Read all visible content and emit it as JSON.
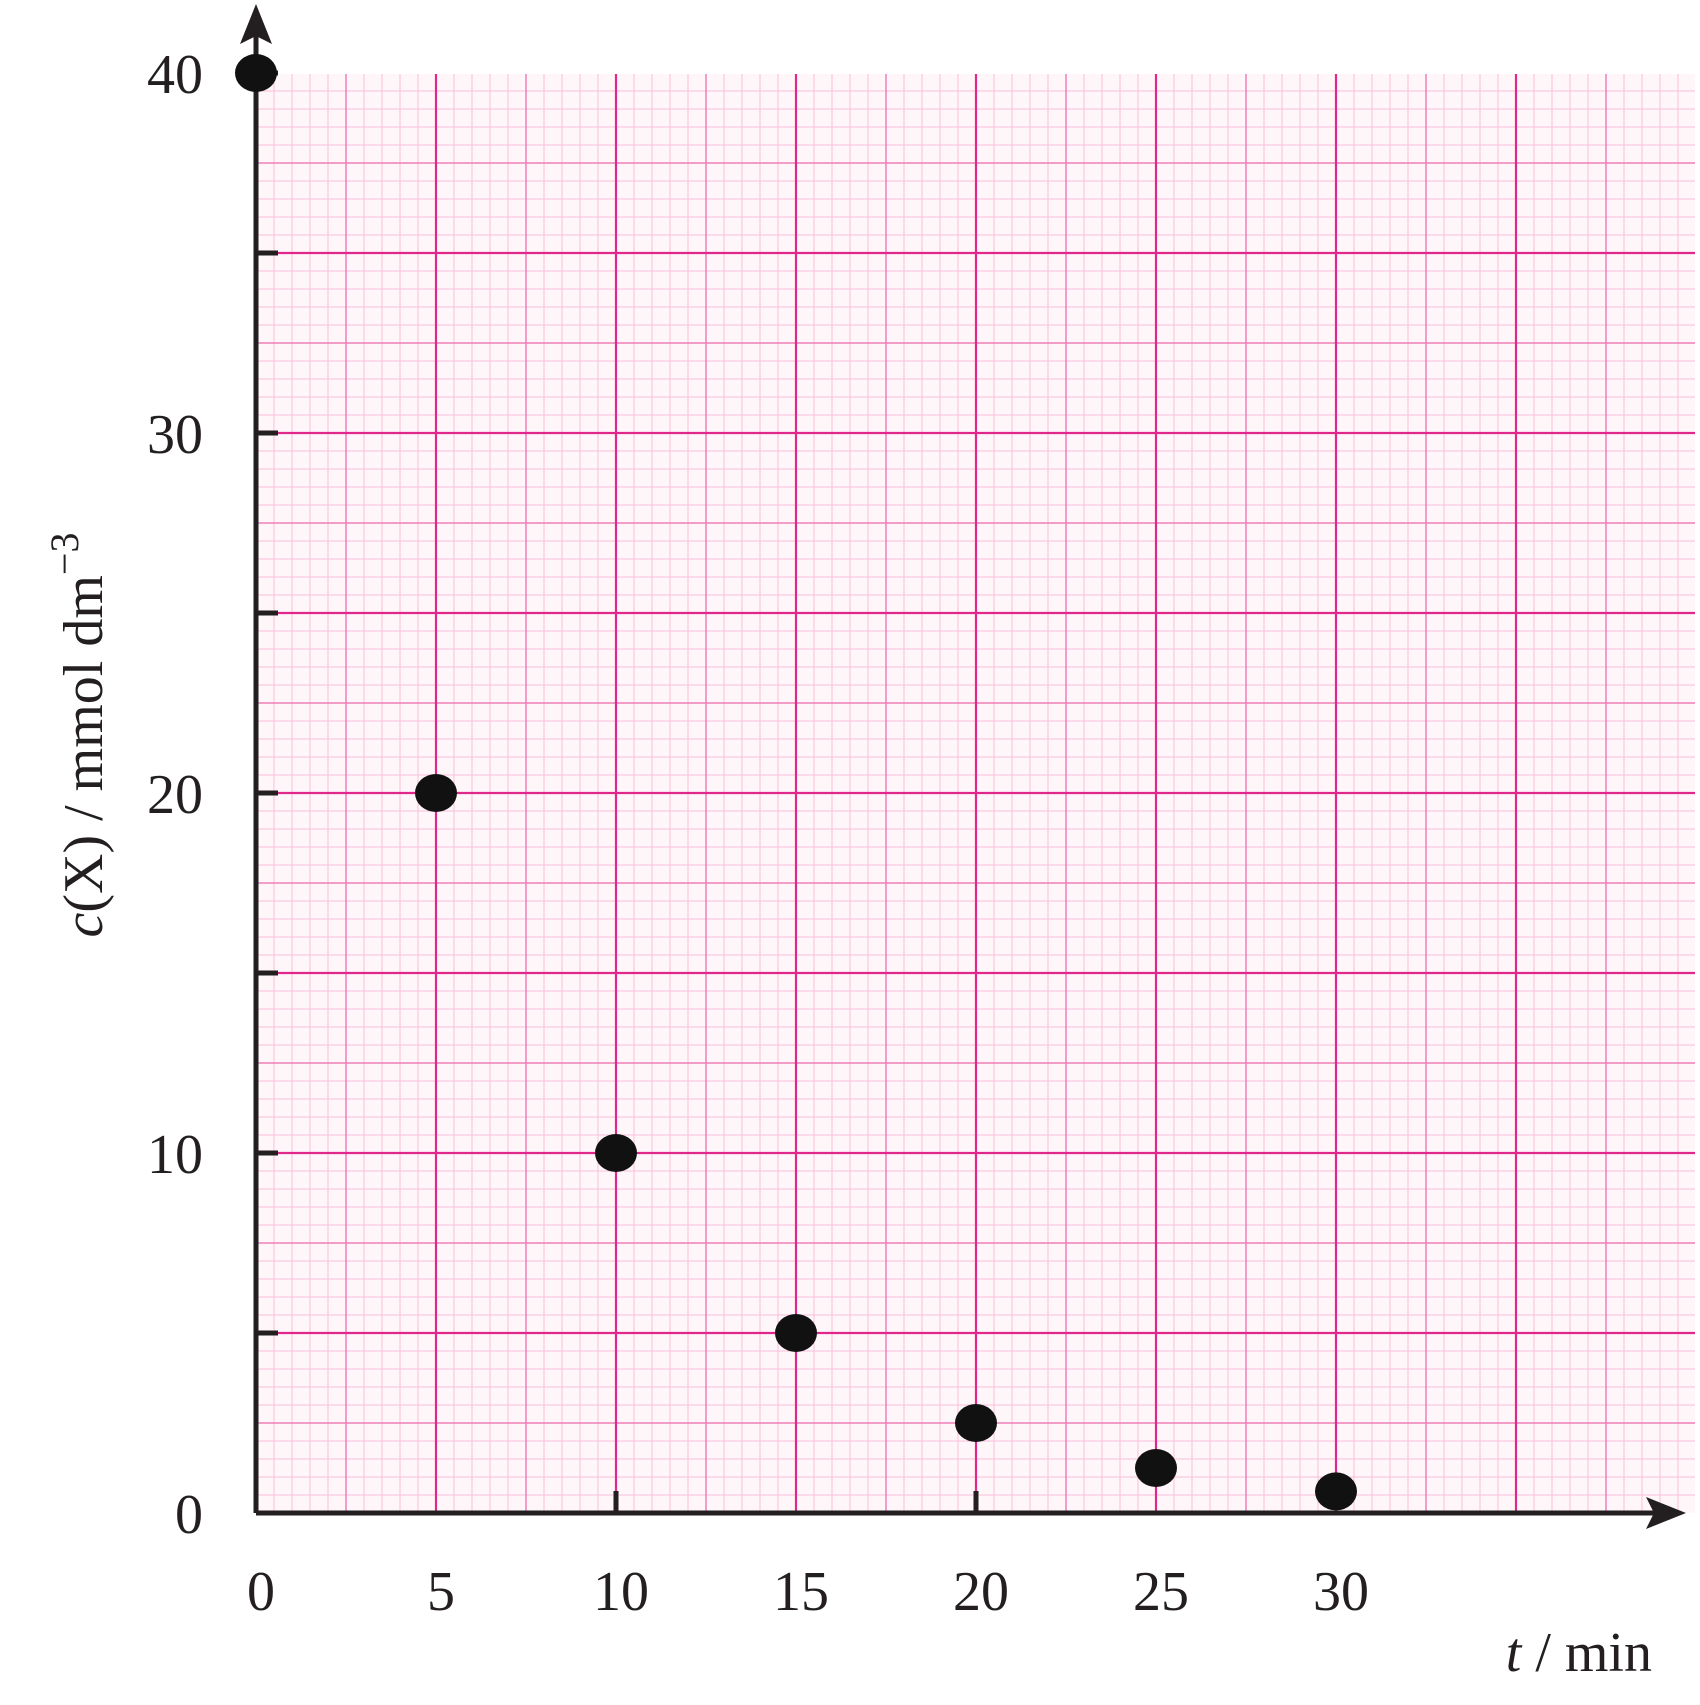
{
  "chart_data": {
    "type": "scatter",
    "title": "",
    "xlabel": {
      "symbol": "t",
      "unit": " / min"
    },
    "ylabel": {
      "symbol": "c",
      "rest": "(X) / mmol dm",
      "sup": "−3"
    },
    "xlim": [
      0,
      40
    ],
    "ylim": [
      0,
      40
    ],
    "x_ticks": [
      0,
      5,
      10,
      15,
      20,
      25,
      30
    ],
    "x_tick_labels": [
      "0",
      "5",
      "10",
      "15",
      "20",
      "25",
      "30"
    ],
    "y_ticks": [
      0,
      10,
      20,
      30,
      40
    ],
    "y_tick_labels": [
      "0",
      "10",
      "20",
      "30",
      "40"
    ],
    "grid": {
      "major_step": 5,
      "minor_step": 0.5,
      "mid_step": 2.5
    },
    "points": [
      {
        "x": 0,
        "y": 40
      },
      {
        "x": 5,
        "y": 20
      },
      {
        "x": 10,
        "y": 10
      },
      {
        "x": 15,
        "y": 5
      },
      {
        "x": 20,
        "y": 2.5
      },
      {
        "x": 25,
        "y": 1.25
      },
      {
        "x": 30,
        "y": 0.6
      }
    ],
    "colors": {
      "grid_major": "#e0288c",
      "grid_mid": "#ee7fb8",
      "grid_minor": "#f8bfd9",
      "axis": "#231f20",
      "marker": "#111111"
    }
  }
}
